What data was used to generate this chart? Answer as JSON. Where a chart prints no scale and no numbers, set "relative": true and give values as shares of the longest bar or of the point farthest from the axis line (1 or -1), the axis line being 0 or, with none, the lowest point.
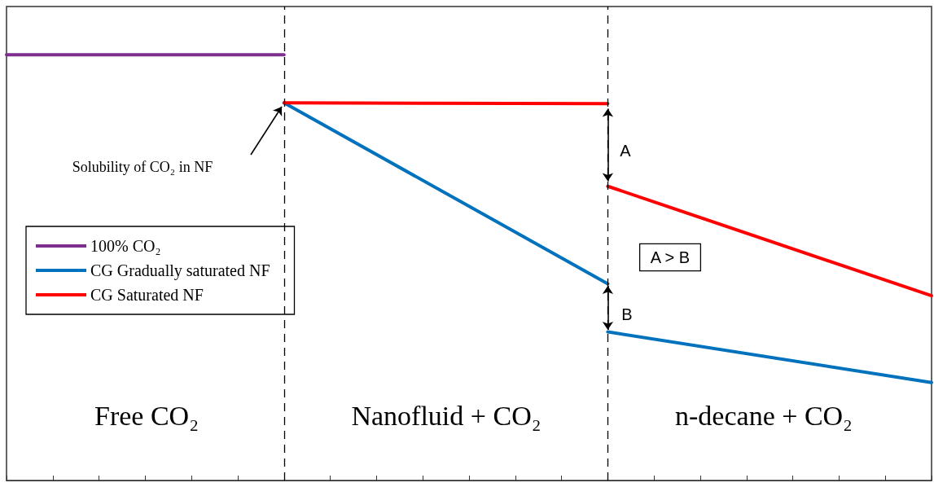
{
  "chart_data": {
    "type": "line",
    "relative": true,
    "categories": [
      null,
      null,
      null,
      null,
      null,
      null,
      null,
      null,
      null,
      null,
      null,
      null,
      null,
      null,
      null,
      null,
      null,
      null,
      null,
      null,
      null
    ],
    "series": [
      {
        "name": "100% CO₂",
        "color": "#7e2f8e",
        "values": [
          1,
          null,
          null,
          null,
          null,
          null,
          1,
          null,
          null,
          null,
          null,
          null,
          null,
          null,
          null,
          null,
          null,
          null,
          null,
          null,
          null
        ]
      },
      {
        "name": "CG Gradually saturated NF",
        "color": "#0072bd",
        "values": [
          null,
          null,
          null,
          null,
          null,
          null,
          0.887,
          null,
          null,
          null,
          null,
          null,
          null,
          0.462,
          null,
          null,
          null,
          null,
          null,
          null,
          null
        ]
      },
      {
        "name": "CG Saturated NF",
        "color": "#ff0000",
        "values": [
          null,
          null,
          null,
          null,
          null,
          null,
          0.887,
          null,
          null,
          null,
          null,
          null,
          null,
          0.885,
          null,
          null,
          null,
          null,
          null,
          null,
          null
        ]
      },
      {
        "color": "#ff0000",
        "values": [
          null,
          null,
          null,
          null,
          null,
          null,
          null,
          null,
          null,
          null,
          null,
          null,
          null,
          0.691,
          null,
          null,
          null,
          null,
          null,
          null,
          0.434
        ]
      },
      {
        "color": "#0072bd",
        "values": [
          null,
          null,
          null,
          null,
          null,
          null,
          null,
          null,
          null,
          null,
          null,
          null,
          null,
          0.349,
          null,
          null,
          null,
          null,
          null,
          null,
          0.23
        ]
      }
    ],
    "annotations": [
      "Solubility of CO₂ in NF",
      "A",
      "B",
      "A > B",
      "Free CO₂",
      "Nanofluid + CO₂",
      "n-decane + CO₂"
    ],
    "legend": "left",
    "grid": false,
    "marker": "none",
    "line_style": "solid"
  }
}
